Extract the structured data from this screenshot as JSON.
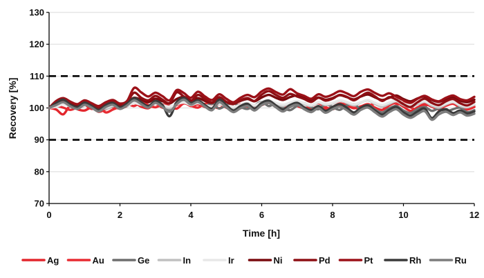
{
  "chart_data": {
    "type": "line",
    "xlabel": "Time [h]",
    "ylabel": "Recovery [%]",
    "xlim": [
      0,
      12
    ],
    "ylim": [
      70,
      130
    ],
    "xticks": [
      0,
      2,
      4,
      6,
      8,
      10,
      12
    ],
    "yticks": [
      70,
      80,
      90,
      100,
      110,
      120,
      130
    ],
    "reference_lines": [
      110,
      90
    ],
    "legend_position": "bottom",
    "grid": "horizontal",
    "x": [
      0,
      0.2,
      0.4,
      0.6,
      0.8,
      1,
      1.2,
      1.4,
      1.6,
      1.8,
      2,
      2.2,
      2.4,
      2.6,
      2.8,
      3,
      3.2,
      3.4,
      3.6,
      3.8,
      4,
      4.2,
      4.4,
      4.6,
      4.8,
      5,
      5.2,
      5.4,
      5.6,
      5.8,
      6,
      6.2,
      6.4,
      6.6,
      6.8,
      7,
      7.2,
      7.4,
      7.6,
      7.8,
      8,
      8.2,
      8.4,
      8.6,
      8.8,
      9,
      9.2,
      9.4,
      9.6,
      9.8,
      10,
      10.2,
      10.4,
      10.6,
      10.8,
      11,
      11.2,
      11.4,
      11.6,
      11.8,
      12
    ],
    "series": [
      {
        "name": "Ag",
        "color": "#e3262d",
        "values": [
          100,
          99.5,
          98,
          100.8,
          99.6,
          99.2,
          100.1,
          98.8,
          99.6,
          100.3,
          99.8,
          100.6,
          101.5,
          100.4,
          99.9,
          101.3,
          100.1,
          99.7,
          100.9,
          101.8,
          100.6,
          101.1,
          100.3,
          99.6,
          101.2,
          100.1,
          99.3,
          99.9,
          100.6,
          100.1,
          100.9,
          101.6,
          100.3,
          99.8,
          100.6,
          101.3,
          100.2,
          99.7,
          100.5,
          99.6,
          100.3,
          101.4,
          100.8,
          99.9,
          100.5,
          101.2,
          100.1,
          99.4,
          100.8,
          101.6,
          100.4,
          99.1,
          100.2,
          101.2,
          100.4,
          99.6,
          100.8,
          101.5,
          100.2,
          99.5,
          100.3
        ]
      },
      {
        "name": "Au",
        "color": "#e82b32",
        "values": [
          100,
          100.6,
          100.1,
          99.4,
          100.2,
          100.9,
          99.7,
          100.3,
          98.6,
          99.5,
          100.4,
          101.2,
          100.6,
          101.8,
          100.9,
          100.2,
          101.1,
          100.5,
          99.8,
          101.4,
          100.7,
          100.1,
          101.3,
          100.6,
          99.9,
          100.8,
          100.2,
          101.1,
          100.4,
          99.7,
          100.9,
          101.7,
          100.5,
          100.1,
          101.2,
          100.6,
          99.9,
          100.7,
          101.5,
          100.3,
          99.6,
          100.8,
          101.4,
          100.2,
          99.7,
          100.6,
          101.3,
          100.5,
          99.8,
          100.9,
          101.6,
          100.2,
          99.4,
          100.6,
          101.2,
          99.9,
          100.7,
          101.3,
          100.1,
          99.6,
          100.4
        ]
      },
      {
        "name": "Ge",
        "color": "#6e6e6e",
        "values": [
          100,
          101.2,
          102.4,
          101.1,
          100.3,
          101.5,
          100.2,
          99.6,
          100.8,
          101.3,
          100.5,
          101.7,
          102.9,
          101.6,
          100.4,
          101.8,
          100.9,
          99.3,
          101.7,
          102.6,
          101.3,
          102.1,
          100.6,
          101.4,
          99.8,
          100.9,
          101.6,
          100.3,
          99.7,
          100.8,
          101.9,
          100.6,
          101.4,
          100.1,
          99.3,
          100.7,
          101.5,
          100.2,
          99.6,
          101.1,
          100.3,
          99.4,
          100.8,
          101.2,
          99.7,
          100.9,
          99.5,
          98.6,
          99.9,
          100.6,
          99.2,
          98.4,
          99.7,
          100.3,
          99.1,
          99.8,
          98.9,
          99.6,
          100.1,
          98.7,
          99.3
        ]
      },
      {
        "name": "In",
        "color": "#c0c0c0",
        "values": [
          100,
          100.8,
          101.5,
          100.6,
          99.9,
          100.7,
          101.3,
          100.4,
          99.7,
          100.5,
          101.2,
          100.6,
          101.8,
          101.1,
          100.3,
          101.4,
          100.8,
          99.9,
          101.1,
          101.9,
          100.9,
          101.6,
          100.7,
          100.1,
          101.2,
          100.5,
          99.8,
          100.9,
          101.5,
          100.6,
          101.8,
          102.4,
          101.3,
          100.6,
          101.5,
          102.1,
          101.2,
          100.6,
          101.7,
          100.9,
          101.4,
          102.3,
          101.6,
          100.8,
          101.7,
          102.4,
          101.2,
          100.4,
          101.3,
          102.1,
          100.9,
          100.3,
          101.2,
          101.9,
          100.7,
          100.1,
          101.1,
          101.8,
          100.6,
          100.2,
          101.0
        ]
      },
      {
        "name": "Ir",
        "color": "#e8e8e8",
        "values": [
          100,
          100.4,
          101.1,
          100.5,
          100.1,
          100.8,
          101.2,
          100.6,
          100.2,
          100.9,
          101.4,
          100.8,
          101.5,
          101.0,
          100.6,
          101.3,
          100.9,
          100.4,
          101.2,
          101.7,
          101.1,
          101.5,
          100.9,
          100.5,
          101.3,
          100.8,
          100.3,
          101.0,
          101.4,
          100.9,
          101.8,
          102.3,
          101.6,
          101.0,
          101.7,
          102.2,
          101.5,
          100.9,
          101.8,
          101.3,
          101.6,
          102.4,
          101.9,
          101.2,
          101.8,
          102.5,
          101.6,
          100.9,
          101.7,
          102.3,
          101.4,
          100.8,
          101.6,
          102.1,
          101.2,
          100.6,
          101.4,
          101.9,
          101.0,
          100.5,
          101.2
        ]
      },
      {
        "name": "Ni",
        "color": "#7a0a0e",
        "values": [
          100,
          101.8,
          102.6,
          101.7,
          100.9,
          102.1,
          101.3,
          100.5,
          101.6,
          102.3,
          101.2,
          101.9,
          103.2,
          102.6,
          101.8,
          102.9,
          102.1,
          101.4,
          102.8,
          103.5,
          102.4,
          103.1,
          102.2,
          101.6,
          102.7,
          101.9,
          101.3,
          102.2,
          102.8,
          102.1,
          103.3,
          104.1,
          103.2,
          102.5,
          103.4,
          103.9,
          103.1,
          102.4,
          103.3,
          102.6,
          103.1,
          104.0,
          103.4,
          102.7,
          103.6,
          104.2,
          103.3,
          102.5,
          103.2,
          103.9,
          102.8,
          102.1,
          103.0,
          103.6,
          102.5,
          101.9,
          102.8,
          103.4,
          102.3,
          101.8,
          102.6
        ]
      },
      {
        "name": "Pd",
        "color": "#8e0f14",
        "values": [
          100,
          101.4,
          102.1,
          100.9,
          100.2,
          101.6,
          100.7,
          99.8,
          101.1,
          101.8,
          100.6,
          101.9,
          104.8,
          103.2,
          102.4,
          103.8,
          102.6,
          101.5,
          104.9,
          103.6,
          102.2,
          104.1,
          102.8,
          101.7,
          103.4,
          101.9,
          101.2,
          102.4,
          103.1,
          102.2,
          104.2,
          105.3,
          104.1,
          103.2,
          104.4,
          103.6,
          102.8,
          101.9,
          103.2,
          102.3,
          102.9,
          104.1,
          103.5,
          102.4,
          103.7,
          104.8,
          103.6,
          102.2,
          103.4,
          102.6,
          101.2,
          100.3,
          101.8,
          102.9,
          101.6,
          100.9,
          102.1,
          102.8,
          101.5,
          100.8,
          101.9
        ]
      },
      {
        "name": "Pt",
        "color": "#9c1118",
        "values": [
          100,
          102.2,
          103.1,
          102.0,
          101.2,
          102.4,
          101.5,
          100.6,
          101.8,
          102.5,
          101.4,
          102.2,
          106.3,
          104.9,
          103.6,
          104.8,
          103.7,
          102.4,
          105.6,
          104.7,
          103.2,
          105.1,
          103.6,
          102.5,
          104.3,
          102.9,
          101.8,
          103.2,
          104.1,
          103.4,
          105.2,
          106.1,
          105.0,
          104.2,
          105.9,
          104.6,
          103.8,
          102.9,
          104.3,
          103.5,
          104.2,
          105.3,
          104.6,
          103.7,
          105.1,
          105.8,
          104.7,
          103.8,
          104.6,
          103.5,
          102.4,
          101.6,
          102.9,
          103.8,
          102.7,
          102.1,
          103.2,
          103.9,
          102.8,
          102.4,
          103.5
        ]
      },
      {
        "name": "Rh",
        "color": "#3a3a3a",
        "values": [
          100,
          101.5,
          102.6,
          101.0,
          100.3,
          101.7,
          100.6,
          99.4,
          100.9,
          101.6,
          100.2,
          101.4,
          103.1,
          101.8,
          100.6,
          102.2,
          100.9,
          97.4,
          101.8,
          103.2,
          101.6,
          102.4,
          100.9,
          99.8,
          102.6,
          100.9,
          99.2,
          100.6,
          101.3,
          99.8,
          101.6,
          102.3,
          100.8,
          99.5,
          100.9,
          101.6,
          100.2,
          99.3,
          100.6,
          99.1,
          100.3,
          101.2,
          100.1,
          98.6,
          100.1,
          100.8,
          99.2,
          97.9,
          99.4,
          100.3,
          98.6,
          97.6,
          98.9,
          99.8,
          96.8,
          98.9,
          99.6,
          98.4,
          99.2,
          98.3,
          98.9
        ]
      },
      {
        "name": "Ru",
        "color": "#7d7d7d",
        "values": [
          100,
          100.9,
          101.8,
          100.5,
          99.7,
          101.0,
          100.1,
          98.9,
          100.3,
          101.0,
          99.7,
          100.8,
          102.4,
          101.2,
          100.1,
          101.6,
          100.3,
          98.8,
          101.2,
          102.6,
          101.1,
          101.9,
          100.4,
          99.3,
          101.8,
          100.2,
          98.7,
          99.9,
          100.6,
          99.2,
          100.9,
          101.6,
          100.2,
          98.9,
          100.3,
          101.0,
          99.6,
          98.7,
          99.9,
          98.5,
          99.6,
          100.4,
          99.3,
          97.9,
          99.4,
          100.1,
          98.6,
          97.3,
          98.7,
          99.6,
          97.9,
          96.9,
          98.1,
          99.0,
          96.3,
          98.0,
          98.8,
          97.8,
          98.6,
          97.6,
          98.2
        ]
      }
    ]
  }
}
